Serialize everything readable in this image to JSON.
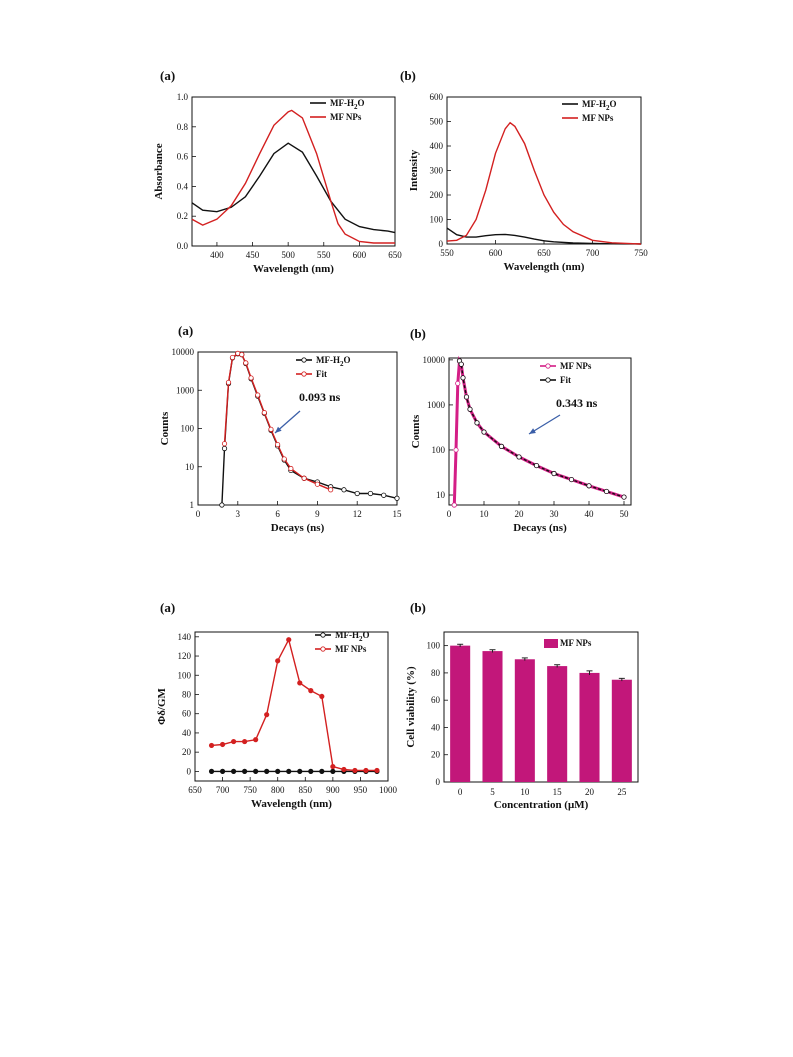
{
  "colors": {
    "black": "#111111",
    "red": "#d32020",
    "magenta": "#c2177a",
    "pink": "#d41e86",
    "axis": "#111111"
  },
  "chart_data": [
    {
      "panel": "(a)",
      "type": "line",
      "xlabel": "Wavelength (nm)",
      "ylabel": "Absorbance",
      "xlim": [
        365,
        650
      ],
      "ylim": [
        0,
        1.0
      ],
      "xticks": [
        400,
        450,
        500,
        550,
        600,
        650
      ],
      "xtick_labels": [
        "400",
        "450",
        "500",
        "550",
        "600",
        "650"
      ],
      "yticks": [
        0,
        0.2,
        0.4,
        0.6,
        0.8,
        1.0
      ],
      "ytick_labels": [
        "0.0",
        "0.2",
        "0.4",
        "0.6",
        "0.8",
        "1.0"
      ],
      "legend_position": "top-right",
      "series": [
        {
          "name": "MF-H2O",
          "legend_main": "MF-H",
          "legend_sub": "2",
          "legend_tail": "O",
          "color": "#111111",
          "x": [
            365,
            380,
            400,
            420,
            440,
            460,
            480,
            500,
            520,
            540,
            560,
            580,
            600,
            620,
            640,
            650
          ],
          "y": [
            0.29,
            0.24,
            0.23,
            0.26,
            0.33,
            0.47,
            0.62,
            0.69,
            0.63,
            0.47,
            0.3,
            0.18,
            0.13,
            0.11,
            0.1,
            0.09
          ]
        },
        {
          "name": "MF NPs",
          "legend_main": "MF NPs",
          "legend_sub": "",
          "legend_tail": "",
          "color": "#d32020",
          "x": [
            365,
            380,
            400,
            420,
            440,
            460,
            480,
            500,
            505,
            520,
            540,
            560,
            570,
            580,
            600,
            620,
            640,
            650
          ],
          "y": [
            0.18,
            0.14,
            0.18,
            0.27,
            0.42,
            0.62,
            0.81,
            0.9,
            0.91,
            0.86,
            0.62,
            0.3,
            0.15,
            0.08,
            0.03,
            0.02,
            0.02,
            0.02
          ]
        }
      ]
    },
    {
      "panel": "(b)",
      "type": "line",
      "xlabel": "Wavelength (nm)",
      "ylabel": "Intensity",
      "xlim": [
        550,
        750
      ],
      "ylim": [
        0,
        600
      ],
      "xticks": [
        550,
        600,
        650,
        700,
        750
      ],
      "xtick_labels": [
        "550",
        "600",
        "650",
        "700",
        "750"
      ],
      "yticks": [
        0,
        100,
        200,
        300,
        400,
        500,
        600
      ],
      "ytick_labels": [
        "0",
        "100",
        "200",
        "300",
        "400",
        "500",
        "600"
      ],
      "legend_position": "top-right",
      "series": [
        {
          "name": "MF-H2O",
          "legend_main": "MF-H",
          "legend_sub": "2",
          "legend_tail": "O",
          "color": "#111111",
          "x": [
            550,
            560,
            570,
            580,
            590,
            600,
            610,
            620,
            630,
            640,
            650,
            660,
            680,
            700,
            720,
            750
          ],
          "y": [
            65,
            38,
            28,
            28,
            34,
            38,
            39,
            35,
            28,
            20,
            13,
            9,
            4,
            2,
            1,
            0
          ]
        },
        {
          "name": "MF NPs",
          "legend_main": "MF NPs",
          "legend_sub": "",
          "legend_tail": "",
          "color": "#d32020",
          "x": [
            550,
            560,
            570,
            580,
            590,
            600,
            610,
            615,
            620,
            630,
            640,
            650,
            660,
            670,
            680,
            700,
            720,
            750
          ],
          "y": [
            12,
            15,
            35,
            100,
            220,
            370,
            470,
            495,
            480,
            410,
            300,
            200,
            130,
            80,
            50,
            15,
            5,
            0
          ]
        }
      ]
    },
    {
      "panel": "(a)",
      "type": "line",
      "xlabel": "Decays (ns)",
      "ylabel": "Counts",
      "xlim": [
        0,
        15
      ],
      "ylim": [
        1,
        10000
      ],
      "yscale": "log",
      "xticks": [
        0,
        3,
        6,
        9,
        12,
        15
      ],
      "xtick_labels": [
        "0",
        "3",
        "6",
        "9",
        "12",
        "15"
      ],
      "yticks": [
        1,
        10,
        100,
        1000,
        10000
      ],
      "ytick_labels": [
        "1",
        "10",
        "100",
        "1000",
        "10000"
      ],
      "legend_position": "top-right",
      "annotation": "0.093 ns",
      "series": [
        {
          "name": "MF-H2O",
          "legend_main": "MF-H",
          "legend_sub": "2",
          "legend_tail": "O",
          "color": "#111111",
          "x": [
            1.8,
            2.0,
            2.3,
            2.6,
            3.0,
            3.3,
            3.6,
            4.0,
            4.5,
            5.0,
            5.5,
            6.0,
            6.5,
            7.0,
            8.0,
            9.0,
            10.0,
            11.0,
            12.0,
            13.0,
            14.0,
            15.0
          ],
          "y": [
            1,
            30,
            1500,
            7000,
            9000,
            8500,
            5000,
            2000,
            700,
            250,
            90,
            35,
            15,
            8,
            5,
            4,
            3,
            2.5,
            2,
            2,
            1.8,
            1.5
          ]
        },
        {
          "name": "Fit",
          "legend_main": "Fit",
          "legend_sub": "",
          "legend_tail": "",
          "color": "#d32020",
          "x": [
            2.0,
            2.3,
            2.6,
            3.0,
            3.3,
            3.6,
            4.0,
            4.5,
            5.0,
            5.5,
            6.0,
            6.5,
            7.0,
            8.0,
            9.0,
            10.0
          ],
          "y": [
            40,
            1600,
            7200,
            9200,
            8600,
            5200,
            2100,
            750,
            260,
            95,
            38,
            16,
            9,
            5,
            3.5,
            2.5
          ]
        }
      ]
    },
    {
      "panel": "(b)",
      "type": "line",
      "xlabel": "Decays (ns)",
      "ylabel": "Counts",
      "xlim": [
        0,
        52
      ],
      "ylim": [
        6,
        11000
      ],
      "yscale": "log",
      "xticks": [
        0,
        10,
        20,
        30,
        40,
        50
      ],
      "xtick_labels": [
        "0",
        "10",
        "20",
        "30",
        "40",
        "50"
      ],
      "yticks": [
        10,
        100,
        1000,
        10000
      ],
      "ytick_labels": [
        "10",
        "100",
        "1000",
        "10000"
      ],
      "legend_position": "top-right",
      "annotation": "0.343 ns",
      "series": [
        {
          "name": "MF NPs",
          "legend_main": "MF NPs",
          "legend_sub": "",
          "legend_tail": "",
          "color": "#d41e86",
          "x": [
            1.5,
            2.0,
            2.5,
            3.0,
            3.5,
            4.0,
            5.0,
            6.0,
            8.0,
            10.0,
            15.0,
            20.0,
            25.0,
            30.0,
            35.0,
            40.0,
            45.0,
            50.0
          ],
          "y": [
            6,
            100,
            3000,
            9500,
            8000,
            4000,
            1500,
            800,
            400,
            250,
            120,
            70,
            45,
            30,
            22,
            16,
            12,
            9
          ]
        },
        {
          "name": "Fit",
          "legend_main": "Fit",
          "legend_sub": "",
          "legend_tail": "",
          "color": "#111111",
          "x": [
            3.0,
            3.5,
            4.0,
            5.0,
            6.0,
            8.0,
            10.0,
            15.0,
            20.0,
            25.0,
            30.0,
            35.0,
            40.0,
            45.0,
            50.0
          ],
          "y": [
            9500,
            8000,
            4000,
            1500,
            800,
            400,
            250,
            120,
            70,
            45,
            30,
            22,
            16,
            12,
            9
          ]
        }
      ]
    },
    {
      "panel": "(a)",
      "type": "line",
      "xlabel": "Wavelength (nm)",
      "ylabel": "Φδ/GM",
      "xlim": [
        650,
        1000
      ],
      "ylim": [
        -10,
        145
      ],
      "xticks": [
        650,
        700,
        750,
        800,
        850,
        900,
        950,
        1000
      ],
      "xtick_labels": [
        "650",
        "700",
        "750",
        "800",
        "850",
        "900",
        "950",
        "1000"
      ],
      "yticks": [
        0,
        20,
        40,
        60,
        80,
        100,
        120,
        140
      ],
      "ytick_labels": [
        "0",
        "20",
        "40",
        "60",
        "80",
        "100",
        "120",
        "140"
      ],
      "legend_position": "top-right",
      "series": [
        {
          "name": "MF-H2O",
          "legend_main": "MF-H",
          "legend_sub": "2",
          "legend_tail": "O",
          "color": "#111111",
          "x": [
            680,
            700,
            720,
            740,
            760,
            780,
            800,
            820,
            840,
            860,
            880,
            900,
            920,
            940,
            960,
            980
          ],
          "y": [
            0,
            0,
            0,
            0,
            0,
            0,
            0,
            0,
            0,
            0,
            0,
            0,
            0,
            0,
            0,
            0
          ]
        },
        {
          "name": "MF NPs",
          "legend_main": "MF NPs",
          "legend_sub": "",
          "legend_tail": "",
          "color": "#d32020",
          "x": [
            680,
            700,
            720,
            740,
            760,
            780,
            800,
            820,
            840,
            860,
            880,
            900,
            920,
            940,
            960,
            980
          ],
          "y": [
            27,
            28,
            31,
            31,
            33,
            59,
            115,
            137,
            92,
            84,
            78,
            5,
            2,
            1,
            1,
            1
          ]
        }
      ]
    },
    {
      "panel": "(b)",
      "type": "bar",
      "xlabel": "Concentration (μM)",
      "ylabel": "Cell viability (%)",
      "ylim": [
        0,
        110
      ],
      "categories": [
        "0",
        "5",
        "10",
        "15",
        "20",
        "25"
      ],
      "yticks": [
        0,
        20,
        40,
        60,
        80,
        100
      ],
      "ytick_labels": [
        "0",
        "20",
        "40",
        "60",
        "80",
        "100"
      ],
      "legend_position": "top-right",
      "series": [
        {
          "name": "MF NPs",
          "legend_main": "MF NPs",
          "legend_sub": "",
          "legend_tail": "",
          "color": "#c2177a",
          "values": [
            100,
            96,
            90,
            85,
            80,
            75
          ],
          "errors": [
            1.0,
            1.0,
            1.0,
            1.0,
            1.5,
            1.0
          ]
        }
      ]
    }
  ]
}
